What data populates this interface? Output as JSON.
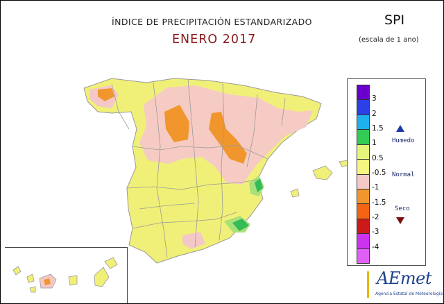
{
  "header": {
    "title": "ÍNDICE DE PRECIPITACIÓN ESTANDARIZADO",
    "subtitle": "ENERO 2017",
    "index_name": "SPI",
    "scale_note": "(escala de 1 ano)"
  },
  "legend": {
    "ticks": [
      "3",
      "2",
      "1.5",
      "1",
      "0.5",
      "-0.5",
      "-1",
      "-1.5",
      "-2",
      "-3",
      "-4"
    ],
    "colors": [
      "#6a00cc",
      "#2b40e6",
      "#1fb0ee",
      "#33cc55",
      "#e6f57a",
      "#f5f580",
      "#f5c8c8",
      "#f0962d",
      "#f56414",
      "#cc1a1a",
      "#cc33ee",
      "#e060f5"
    ],
    "humid_label": "Humedo",
    "normal_label": "Normal",
    "dry_label": "Seco",
    "humid_color": "#1a3aa8",
    "dry_color": "#7a1010"
  },
  "logo": {
    "name": "AEmet",
    "agency": "Agencia Estatal de Meteorología",
    "color": "#1e3f8f"
  },
  "map": {
    "base_color": "#f0f078",
    "dry_color": "#f5c8c8",
    "very_dry_color": "#f0962d",
    "wet_color": "#33bb55"
  }
}
